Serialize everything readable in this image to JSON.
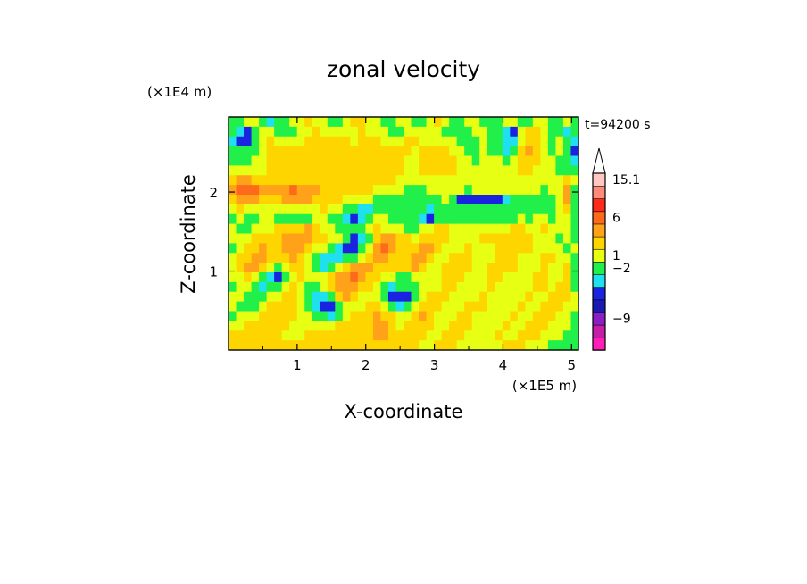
{
  "chart_data": {
    "type": "heatmap",
    "title": "zonal velocity",
    "xlabel": "X-coordinate",
    "ylabel": "Z-coordinate",
    "x_unit": "(×1E5 m)",
    "y_unit": "(×1E4 m)",
    "time_label": "t=94200 s",
    "xlim": [
      0,
      5.1
    ],
    "ylim": [
      0,
      2.95
    ],
    "x_ticks": [
      1,
      2,
      3,
      4,
      5
    ],
    "y_ticks": [
      1,
      2
    ],
    "colorbar": {
      "colors": [
        "#ff1fb6",
        "#c41ea8",
        "#8a1ec4",
        "#1a1ab0",
        "#1a24e0",
        "#1fe0f0",
        "#22f04a",
        "#e6ff12",
        "#ffd500",
        "#ffa21a",
        "#ff6a1a",
        "#ff2a1a",
        "#ff8a7a",
        "#ffc6c2"
      ],
      "labels": [
        {
          "value": "15.1",
          "level": 13
        },
        {
          "value": "6",
          "level": 10
        },
        {
          "value": "1",
          "level": 7
        },
        {
          "value": "−2",
          "level": 6
        },
        {
          "value": "−9",
          "level": 2
        }
      ],
      "extend": "max"
    },
    "field_levels": [
      [
        6,
        6,
        7,
        7,
        6,
        5,
        6,
        6,
        7,
        7,
        8,
        7,
        7,
        6,
        6,
        7,
        8,
        8,
        7,
        7,
        6,
        6,
        7,
        7,
        6,
        6,
        7,
        8,
        7,
        6,
        6,
        7,
        7,
        6,
        6,
        6,
        7,
        7,
        6,
        6,
        7,
        7,
        6,
        6,
        7,
        6
      ],
      [
        6,
        5,
        4,
        6,
        7,
        7,
        6,
        6,
        6,
        7,
        7,
        8,
        7,
        7,
        7,
        7,
        7,
        8,
        7,
        7,
        7,
        6,
        6,
        7,
        7,
        7,
        7,
        7,
        6,
        6,
        6,
        6,
        7,
        7,
        6,
        6,
        5,
        4,
        7,
        8,
        8,
        7,
        6,
        6,
        5,
        6
      ],
      [
        5,
        4,
        4,
        6,
        7,
        8,
        7,
        7,
        7,
        7,
        8,
        8,
        8,
        8,
        8,
        8,
        7,
        8,
        8,
        8,
        7,
        7,
        7,
        8,
        8,
        7,
        7,
        7,
        7,
        7,
        6,
        6,
        6,
        7,
        6,
        6,
        5,
        5,
        7,
        8,
        8,
        7,
        6,
        7,
        6,
        5
      ],
      [
        6,
        6,
        6,
        6,
        7,
        8,
        8,
        8,
        8,
        8,
        8,
        8,
        8,
        8,
        8,
        8,
        8,
        8,
        8,
        8,
        8,
        8,
        8,
        8,
        7,
        8,
        8,
        8,
        8,
        7,
        7,
        6,
        6,
        7,
        6,
        6,
        5,
        6,
        8,
        9,
        8,
        7,
        6,
        7,
        6,
        4
      ],
      [
        6,
        6,
        6,
        7,
        7,
        8,
        8,
        8,
        8,
        8,
        8,
        8,
        8,
        8,
        8,
        8,
        8,
        8,
        8,
        8,
        8,
        8,
        8,
        7,
        7,
        8,
        8,
        8,
        8,
        8,
        7,
        7,
        6,
        7,
        7,
        7,
        6,
        7,
        8,
        8,
        8,
        7,
        7,
        6,
        6,
        5
      ],
      [
        7,
        7,
        7,
        7,
        7,
        8,
        8,
        8,
        8,
        8,
        8,
        8,
        8,
        8,
        8,
        8,
        8,
        8,
        8,
        8,
        8,
        8,
        8,
        7,
        7,
        8,
        8,
        8,
        8,
        8,
        7,
        7,
        7,
        7,
        7,
        7,
        7,
        7,
        8,
        8,
        7,
        7,
        7,
        6,
        6,
        6
      ],
      [
        8,
        9,
        9,
        8,
        8,
        8,
        8,
        8,
        8,
        8,
        8,
        8,
        8,
        8,
        8,
        8,
        8,
        8,
        8,
        8,
        8,
        8,
        7,
        7,
        7,
        7,
        7,
        7,
        7,
        7,
        7,
        7,
        7,
        7,
        7,
        7,
        7,
        7,
        7,
        7,
        7,
        7,
        7,
        7,
        8,
        7
      ],
      [
        9,
        10,
        10,
        10,
        9,
        9,
        9,
        9,
        10,
        9,
        9,
        9,
        8,
        8,
        8,
        8,
        8,
        8,
        8,
        7,
        7,
        7,
        7,
        6,
        6,
        6,
        7,
        7,
        7,
        7,
        7,
        6,
        7,
        7,
        7,
        7,
        7,
        7,
        7,
        7,
        7,
        6,
        7,
        7,
        9,
        6
      ],
      [
        8,
        9,
        9,
        9,
        8,
        8,
        8,
        9,
        9,
        9,
        9,
        8,
        8,
        8,
        8,
        7,
        7,
        7,
        7,
        6,
        6,
        6,
        6,
        6,
        6,
        6,
        6,
        6,
        7,
        6,
        4,
        4,
        4,
        4,
        4,
        4,
        5,
        6,
        6,
        6,
        6,
        6,
        6,
        7,
        9,
        6
      ],
      [
        7,
        8,
        7,
        7,
        7,
        7,
        7,
        7,
        7,
        7,
        7,
        7,
        8,
        7,
        7,
        6,
        6,
        5,
        5,
        6,
        6,
        6,
        6,
        6,
        6,
        6,
        5,
        6,
        6,
        6,
        6,
        6,
        6,
        6,
        6,
        6,
        6,
        6,
        6,
        6,
        6,
        6,
        6,
        7,
        8,
        6
      ],
      [
        6,
        7,
        6,
        6,
        7,
        7,
        6,
        6,
        6,
        6,
        6,
        7,
        7,
        6,
        6,
        5,
        4,
        5,
        6,
        7,
        7,
        6,
        6,
        6,
        6,
        5,
        4,
        6,
        6,
        6,
        6,
        6,
        6,
        6,
        6,
        6,
        6,
        6,
        7,
        6,
        7,
        7,
        6,
        7,
        7,
        6
      ],
      [
        7,
        6,
        6,
        7,
        7,
        7,
        8,
        8,
        8,
        8,
        9,
        8,
        7,
        7,
        6,
        6,
        6,
        6,
        7,
        8,
        7,
        7,
        7,
        6,
        6,
        7,
        7,
        8,
        8,
        7,
        7,
        7,
        7,
        7,
        7,
        7,
        7,
        8,
        8,
        7,
        7,
        8,
        7,
        7,
        7,
        6
      ],
      [
        7,
        7,
        7,
        8,
        8,
        8,
        8,
        9,
        9,
        9,
        9,
        8,
        8,
        7,
        7,
        6,
        4,
        5,
        6,
        8,
        9,
        9,
        8,
        8,
        7,
        8,
        8,
        8,
        8,
        7,
        7,
        7,
        7,
        8,
        8,
        8,
        8,
        8,
        8,
        8,
        7,
        7,
        7,
        6,
        7,
        6
      ],
      [
        6,
        7,
        8,
        8,
        9,
        8,
        8,
        9,
        9,
        9,
        8,
        7,
        7,
        6,
        5,
        4,
        4,
        6,
        7,
        9,
        10,
        9,
        8,
        8,
        8,
        9,
        9,
        8,
        7,
        7,
        7,
        8,
        7,
        7,
        7,
        8,
        8,
        8,
        8,
        8,
        7,
        7,
        7,
        7,
        6,
        7
      ],
      [
        7,
        8,
        8,
        9,
        9,
        8,
        8,
        8,
        9,
        8,
        7,
        6,
        5,
        5,
        5,
        6,
        6,
        7,
        8,
        9,
        9,
        8,
        8,
        8,
        9,
        9,
        8,
        7,
        7,
        8,
        8,
        8,
        7,
        7,
        7,
        8,
        8,
        8,
        7,
        7,
        7,
        8,
        8,
        7,
        7,
        6
      ],
      [
        7,
        8,
        9,
        9,
        8,
        7,
        6,
        7,
        8,
        8,
        7,
        6,
        5,
        6,
        7,
        8,
        9,
        9,
        9,
        8,
        8,
        8,
        8,
        8,
        9,
        8,
        7,
        7,
        8,
        8,
        8,
        8,
        7,
        7,
        8,
        8,
        8,
        8,
        7,
        7,
        7,
        8,
        7,
        7,
        8,
        6
      ],
      [
        7,
        7,
        8,
        7,
        6,
        5,
        4,
        6,
        7,
        8,
        7,
        7,
        7,
        8,
        9,
        9,
        10,
        9,
        8,
        8,
        7,
        7,
        6,
        6,
        7,
        7,
        7,
        7,
        8,
        8,
        8,
        7,
        7,
        7,
        8,
        8,
        7,
        7,
        7,
        7,
        8,
        8,
        7,
        7,
        8,
        6
      ],
      [
        6,
        7,
        7,
        6,
        5,
        6,
        6,
        7,
        8,
        7,
        6,
        6,
        7,
        8,
        9,
        9,
        9,
        8,
        8,
        7,
        6,
        5,
        6,
        6,
        6,
        7,
        7,
        7,
        8,
        8,
        7,
        7,
        7,
        7,
        8,
        7,
        7,
        7,
        7,
        7,
        8,
        8,
        7,
        8,
        8,
        6
      ],
      [
        7,
        7,
        6,
        6,
        6,
        7,
        7,
        8,
        8,
        7,
        6,
        5,
        5,
        6,
        8,
        9,
        8,
        7,
        7,
        7,
        6,
        4,
        4,
        4,
        6,
        7,
        8,
        8,
        8,
        7,
        7,
        7,
        7,
        8,
        7,
        7,
        7,
        7,
        7,
        8,
        7,
        7,
        8,
        8,
        8,
        7
      ],
      [
        7,
        6,
        6,
        6,
        7,
        8,
        8,
        8,
        8,
        7,
        6,
        5,
        4,
        4,
        6,
        7,
        7,
        7,
        8,
        8,
        7,
        6,
        5,
        6,
        7,
        8,
        8,
        8,
        7,
        7,
        7,
        8,
        8,
        8,
        7,
        7,
        7,
        7,
        8,
        7,
        7,
        8,
        8,
        8,
        7,
        7
      ],
      [
        6,
        7,
        7,
        7,
        8,
        8,
        8,
        8,
        8,
        7,
        7,
        6,
        6,
        5,
        6,
        7,
        8,
        8,
        8,
        9,
        8,
        8,
        7,
        7,
        8,
        9,
        8,
        7,
        7,
        7,
        8,
        8,
        7,
        7,
        7,
        7,
        7,
        8,
        7,
        7,
        8,
        8,
        8,
        7,
        7,
        6
      ],
      [
        7,
        7,
        8,
        8,
        8,
        8,
        8,
        8,
        7,
        7,
        7,
        7,
        7,
        7,
        8,
        8,
        8,
        8,
        8,
        9,
        9,
        8,
        7,
        8,
        8,
        8,
        8,
        7,
        7,
        8,
        8,
        8,
        7,
        7,
        7,
        7,
        8,
        7,
        7,
        8,
        8,
        8,
        7,
        7,
        7,
        6
      ],
      [
        8,
        8,
        8,
        8,
        8,
        8,
        8,
        7,
        7,
        7,
        8,
        8,
        8,
        8,
        8,
        8,
        8,
        8,
        8,
        9,
        9,
        8,
        8,
        8,
        8,
        8,
        7,
        7,
        8,
        8,
        8,
        7,
        7,
        7,
        7,
        8,
        7,
        7,
        8,
        8,
        8,
        7,
        7,
        7,
        6,
        6
      ],
      [
        8,
        8,
        8,
        8,
        8,
        8,
        8,
        8,
        8,
        8,
        8,
        8,
        8,
        8,
        8,
        8,
        8,
        8,
        8,
        8,
        8,
        8,
        8,
        8,
        8,
        7,
        7,
        8,
        8,
        8,
        7,
        7,
        7,
        7,
        7,
        7,
        8,
        8,
        8,
        7,
        7,
        7,
        6,
        6,
        6,
        6
      ]
    ]
  }
}
